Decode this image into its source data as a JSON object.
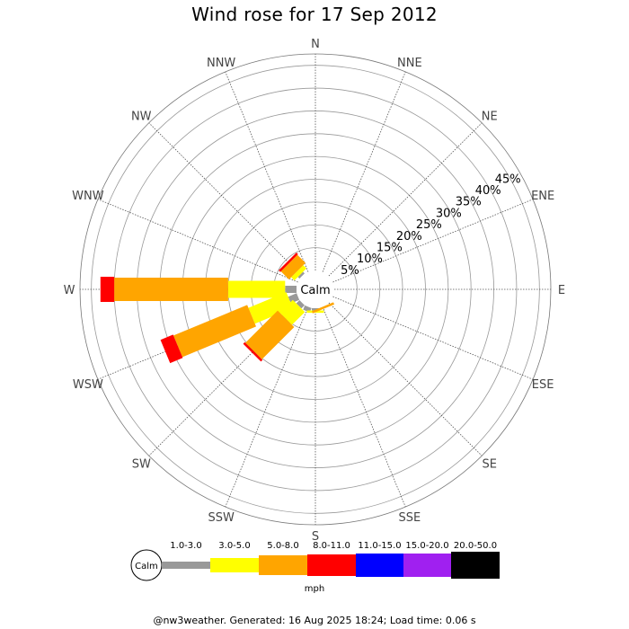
{
  "title": "Wind rose for 17 Sep 2012",
  "footer": "@nw3weather. Generated: 16 Aug 2025 18:24; Load time: 0.06 s",
  "chart_data": {
    "type": "wind-rose",
    "directions": [
      "N",
      "NNE",
      "NE",
      "ENE",
      "E",
      "ESE",
      "SE",
      "SSE",
      "S",
      "SSW",
      "SW",
      "WSW",
      "W",
      "WNW",
      "NW",
      "NNW"
    ],
    "radial_ticks": [
      "5%",
      "10%",
      "15%",
      "20%",
      "25%",
      "30%",
      "35%",
      "40%",
      "45%"
    ],
    "radial_max": 47.5,
    "grid": true,
    "center_label": "Calm",
    "unit": "mph",
    "bins": [
      {
        "label": "1.0-3.0",
        "color": "#999999"
      },
      {
        "label": "3.0-5.0",
        "color": "#ffff00"
      },
      {
        "label": "5.0-8.0",
        "color": "#ffa500"
      },
      {
        "label": "8.0-11.0",
        "color": "#ff0000"
      },
      {
        "label": "11.0-15.0",
        "color": "#0000ff"
      },
      {
        "label": "15.0-20.0",
        "color": "#a020f0"
      },
      {
        "label": "20.0-50.0",
        "color": "#000000"
      }
    ],
    "series": [
      {
        "direction": "W",
        "values": [
          2.5,
          12.5,
          25.0,
          3.0,
          0,
          0,
          0
        ]
      },
      {
        "direction": "WSW",
        "values": [
          2.0,
          9.0,
          17.5,
          3.0,
          0,
          0,
          0
        ]
      },
      {
        "direction": "SW",
        "values": [
          1.0,
          4.0,
          10.0,
          0.5,
          0,
          0,
          0
        ]
      },
      {
        "direction": "NW",
        "values": [
          0.5,
          1.0,
          2.5,
          0.5,
          0,
          0,
          0
        ]
      },
      {
        "direction": "SSW",
        "values": [
          1.0,
          0,
          0,
          0,
          0,
          0,
          0
        ]
      },
      {
        "direction": "S",
        "values": [
          0.5,
          0.5,
          0,
          0,
          0,
          0,
          0
        ]
      },
      {
        "direction": "SSE",
        "values": [
          0,
          0,
          0.5,
          0,
          0,
          0,
          0
        ]
      }
    ]
  }
}
